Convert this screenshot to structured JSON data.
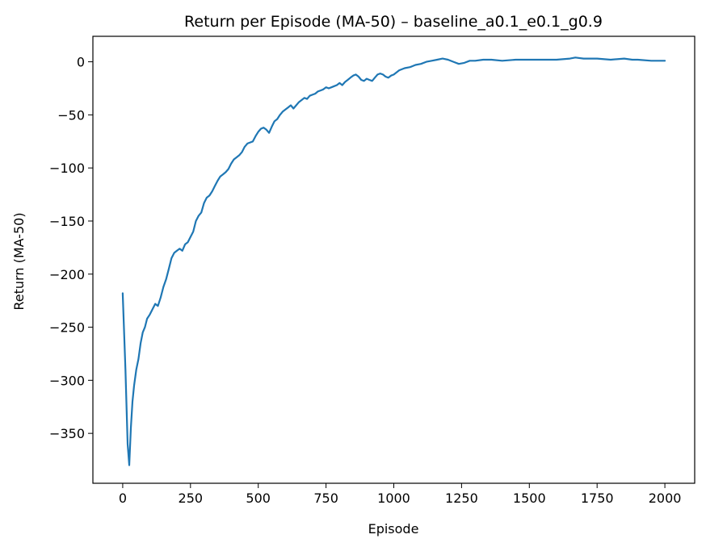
{
  "chart_data": {
    "type": "line",
    "title": "Return per Episode (MA-50) – baseline_a0.1_e0.1_g0.9",
    "xlabel": "Episode",
    "ylabel": "Return (MA-50)",
    "xlim": [
      -110,
      2110
    ],
    "ylim": [
      -397,
      24
    ],
    "xticks": [
      0,
      250,
      500,
      750,
      1000,
      1250,
      1500,
      1750,
      2000
    ],
    "yticks": [
      0,
      -50,
      -100,
      -150,
      -200,
      -250,
      -300,
      -350
    ],
    "grid": false,
    "legend": "none",
    "series": [
      {
        "color": "#1f77b4",
        "x": [
          0,
          10,
          18,
          24,
          30,
          36,
          42,
          50,
          58,
          66,
          74,
          82,
          90,
          100,
          110,
          120,
          130,
          140,
          150,
          160,
          170,
          180,
          190,
          200,
          210,
          220,
          230,
          240,
          250,
          260,
          270,
          280,
          290,
          300,
          310,
          320,
          330,
          340,
          350,
          360,
          370,
          380,
          390,
          400,
          410,
          420,
          430,
          440,
          450,
          460,
          470,
          480,
          490,
          500,
          510,
          520,
          530,
          540,
          550,
          560,
          570,
          580,
          590,
          600,
          610,
          620,
          630,
          640,
          650,
          660,
          670,
          680,
          690,
          700,
          710,
          720,
          730,
          740,
          750,
          760,
          770,
          780,
          790,
          800,
          810,
          820,
          830,
          840,
          850,
          860,
          870,
          880,
          890,
          900,
          910,
          920,
          930,
          940,
          950,
          960,
          970,
          980,
          990,
          1000,
          1020,
          1040,
          1060,
          1080,
          1100,
          1120,
          1140,
          1160,
          1180,
          1200,
          1220,
          1240,
          1260,
          1280,
          1300,
          1330,
          1360,
          1400,
          1450,
          1500,
          1550,
          1600,
          1650,
          1670,
          1700,
          1750,
          1800,
          1850,
          1880,
          1900,
          1950,
          2000
        ],
        "y": [
          -218,
          -290,
          -360,
          -380,
          -345,
          -320,
          -305,
          -290,
          -280,
          -265,
          -255,
          -250,
          -242,
          -238,
          -233,
          -228,
          -230,
          -222,
          -212,
          -205,
          -195,
          -185,
          -180,
          -178,
          -176,
          -178,
          -172,
          -170,
          -165,
          -160,
          -150,
          -145,
          -142,
          -133,
          -128,
          -126,
          -122,
          -117,
          -112,
          -108,
          -106,
          -104,
          -101,
          -96,
          -92,
          -90,
          -88,
          -85,
          -80,
          -77,
          -76,
          -75,
          -70,
          -66,
          -63,
          -62,
          -64,
          -67,
          -61,
          -56,
          -54,
          -50,
          -47,
          -45,
          -43,
          -41,
          -44,
          -41,
          -38,
          -36,
          -34,
          -35,
          -32,
          -31,
          -30,
          -28,
          -27,
          -26,
          -24,
          -25,
          -24,
          -23,
          -22,
          -20,
          -22,
          -19,
          -17,
          -15,
          -13,
          -12,
          -14,
          -17,
          -18,
          -16,
          -17,
          -18,
          -15,
          -12,
          -11,
          -12,
          -14,
          -15,
          -13,
          -12,
          -8,
          -6,
          -5,
          -3,
          -2,
          0,
          1,
          2,
          3,
          2,
          0,
          -2,
          -1,
          1,
          1,
          2,
          2,
          1,
          2,
          2,
          2,
          2,
          3,
          4,
          3,
          3,
          2,
          3,
          2,
          2,
          1,
          1
        ]
      }
    ]
  }
}
